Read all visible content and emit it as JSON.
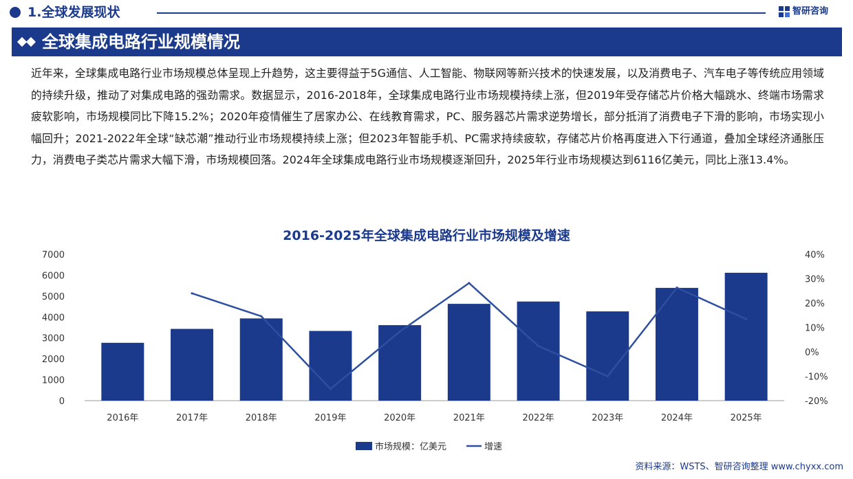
{
  "header": {
    "section_title": "1.全球发展现状",
    "brand_name": "智研咨询",
    "banner_title": "全球集成电路行业规模情况"
  },
  "intro": {
    "text": "近年来，全球集成电路行业市场规模总体呈现上升趋势，这主要得益于5G通信、人工智能、物联网等新兴技术的快速发展，以及消费电子、汽车电子等传统应用领域的持续升级，推动了对集成电路的强劲需求。数据显示，2016-2018年，全球集成电路行业市场规模持续上涨，但2019年受存储芯片价格大幅跳水、终端市场需求疲软影响，市场规模同比下降15.2%；2020年疫情催生了居家办公、在线教育需求，PC、服务器芯片需求逆势增长，部分抵消了消费电子下滑的影响，市场实现小幅回升；2021-2022年全球“缺芯潮”推动行业市场规模持续上涨；但2023年智能手机、PC需求持续疲软，存储芯片价格再度进入下行通道，叠加全球经济通胀压力，消费电子类芯片需求大幅下滑，市场规模回落。2024年全球集成电路行业市场规模逐渐回升，2025年行业市场规模达到6116亿美元，同比上涨13.4%。"
  },
  "chart_data": {
    "type": "bar",
    "title": "2016-2025年全球集成电路行业市场规模及增速",
    "categories": [
      "2016年",
      "2017年",
      "2018年",
      "2019年",
      "2020年",
      "2021年",
      "2022年",
      "2023年",
      "2024年",
      "2025年"
    ],
    "series": [
      {
        "name": "市场规模：亿美元",
        "type": "bar",
        "axis": "left",
        "color": "#1b3a8c",
        "values": [
          2767,
          3432,
          3933,
          3334,
          3612,
          4630,
          4741,
          4269,
          5393,
          6116
        ]
      },
      {
        "name": "增速",
        "type": "line",
        "axis": "right",
        "color": "#2e4f9e",
        "values": [
          null,
          24.0,
          14.6,
          -15.2,
          8.3,
          28.2,
          2.4,
          -10.0,
          26.3,
          13.4
        ]
      }
    ],
    "ylim_left": [
      0,
      7000
    ],
    "yticks_left": [
      "0",
      "1000",
      "2000",
      "3000",
      "4000",
      "5000",
      "6000",
      "7000"
    ],
    "ylim_right": [
      -20,
      40
    ],
    "yticks_right": [
      "-20%",
      "-10%",
      "0%",
      "10%",
      "20%",
      "30%",
      "40%"
    ],
    "legend_position": "bottom-center",
    "grid": false
  },
  "footer": {
    "source": "资料来源：WSTS、智研咨询整理  www.chyxx.com"
  }
}
